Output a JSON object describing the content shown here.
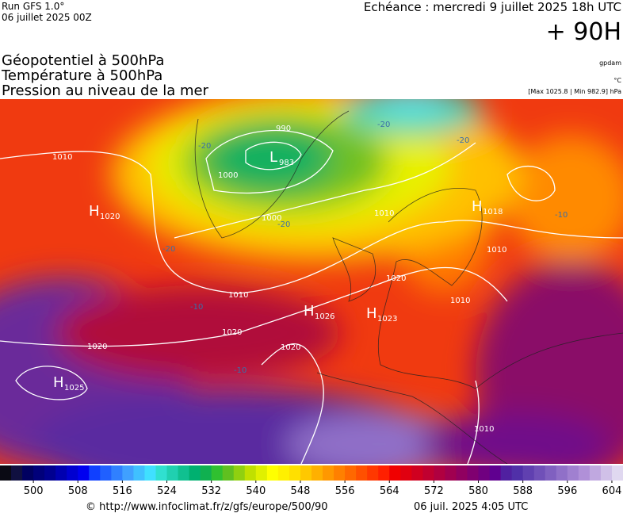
{
  "header": {
    "run": "Run GFS 1.0°",
    "date": "06 juillet 2025 00Z",
    "echeance": "Echéance : mercredi 9 juillet 2025 18h UTC",
    "lead": "+ 90H"
  },
  "layers": [
    "Géopotentiel à 500hPa",
    "Température à 500hPa",
    "Pression au niveau de la mer"
  ],
  "units": {
    "geopotential": "gpdam",
    "temperature": "°C",
    "pressure": "[Max 1025.8 | Min 982.9] hPa"
  },
  "map": {
    "centers": [
      {
        "letter": "H",
        "value": "1020"
      },
      {
        "letter": "L",
        "value": "983"
      },
      {
        "letter": "H",
        "value": "1018"
      },
      {
        "letter": "H",
        "value": "1026"
      },
      {
        "letter": "H",
        "value": "1023"
      },
      {
        "letter": "H",
        "value": "1025"
      }
    ],
    "isobar_labels": [
      "1010",
      "990",
      "1000",
      "1000",
      "1010",
      "1010",
      "1010",
      "1020",
      "1010",
      "1020",
      "1020",
      "1020",
      "1010"
    ],
    "temperature_labels": [
      "-20",
      "-20",
      "-20",
      "-20",
      "-20",
      "-10",
      "-10",
      "-10"
    ]
  },
  "colorbar": {
    "range": [
      494,
      606
    ],
    "ticks": [
      500,
      508,
      516,
      524,
      532,
      540,
      548,
      556,
      564,
      572,
      580,
      588,
      596,
      604
    ],
    "colors": [
      "#0a0a14",
      "#101040",
      "#000060",
      "#00007a",
      "#000090",
      "#0000b0",
      "#0000d0",
      "#0000f0",
      "#1040ff",
      "#2060ff",
      "#3080ff",
      "#40a0ff",
      "#40c0ff",
      "#40e0ff",
      "#30e0d0",
      "#20d0b0",
      "#10c090",
      "#00b070",
      "#10b050",
      "#30c030",
      "#60c020",
      "#90d010",
      "#c0e000",
      "#e0f000",
      "#ffff00",
      "#fff000",
      "#ffe000",
      "#ffc800",
      "#ffb000",
      "#ff9800",
      "#ff8000",
      "#ff6800",
      "#ff5000",
      "#ff3800",
      "#ff2000",
      "#f00000",
      "#e00010",
      "#d00020",
      "#c00030",
      "#b00040",
      "#a00050",
      "#900060",
      "#800070",
      "#700080",
      "#600090",
      "#5020a0",
      "#5030a8",
      "#6040b0",
      "#7050b8",
      "#8060c0",
      "#9070c8",
      "#a080d0",
      "#b090d8",
      "#c0a8e0",
      "#d0c0e8",
      "#e0d8f0"
    ]
  },
  "footer": {
    "url": "© http://www.infoclimat.fr/z/gfs/europe/500/90",
    "timestamp": "06 juil. 2025  4:05 UTC"
  }
}
